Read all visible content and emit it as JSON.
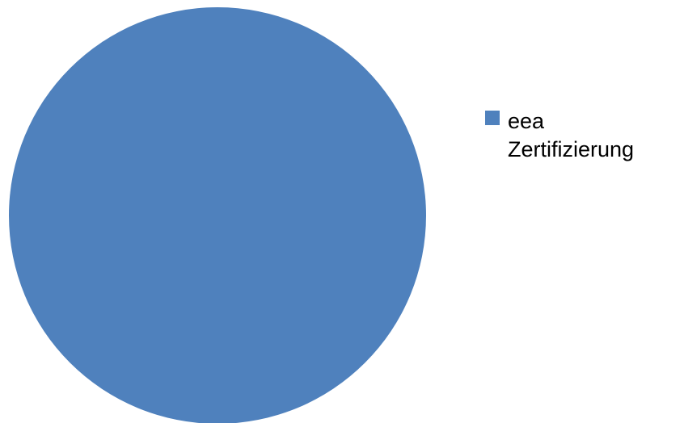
{
  "chart_data": {
    "type": "pie",
    "categories": [
      "eea Zertifizierung"
    ],
    "values": [
      1
    ],
    "colors": [
      "#4f81bd"
    ],
    "legend": {
      "position": "right",
      "entries": [
        "eea Zertifizierung"
      ]
    }
  }
}
